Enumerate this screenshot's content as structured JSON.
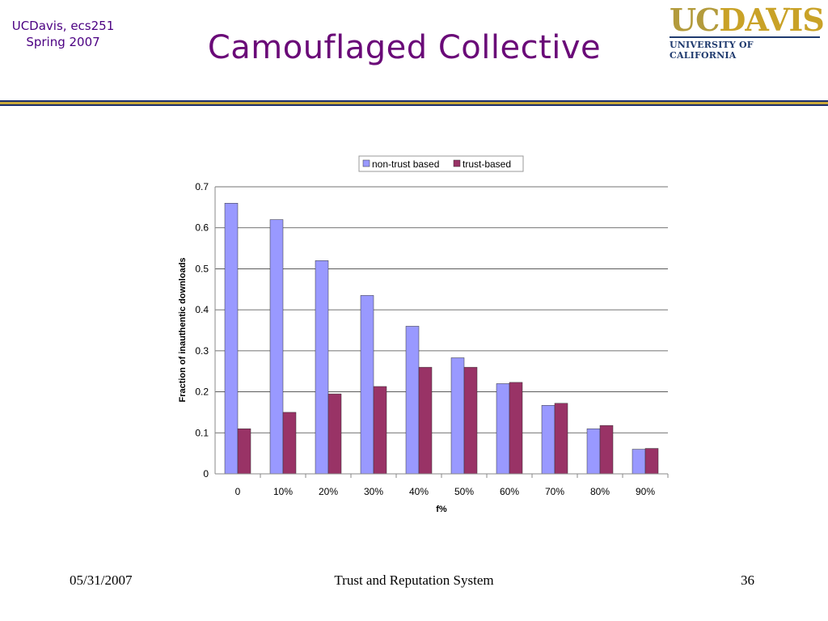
{
  "header": {
    "course_line1": "UCDavis, ecs251",
    "course_line2": "Spring 2007",
    "title": "Camouflaged Collective",
    "logo": {
      "uc": "UC",
      "davis": "DAVIS",
      "sub": "UNIVERSITY OF CALIFORNIA"
    }
  },
  "footer": {
    "date": "05/31/2007",
    "center": "Trust and Reputation System",
    "page": "36"
  },
  "chart_data": {
    "type": "bar",
    "categories": [
      "0",
      "10%",
      "20%",
      "30%",
      "40%",
      "50%",
      "60%",
      "70%",
      "80%",
      "90%"
    ],
    "series": [
      {
        "name": "non-trust based",
        "color": "#9999ff",
        "values": [
          0.66,
          0.62,
          0.52,
          0.435,
          0.36,
          0.283,
          0.22,
          0.167,
          0.11,
          0.06
        ]
      },
      {
        "name": "trust-based",
        "color": "#993366",
        "values": [
          0.11,
          0.15,
          0.195,
          0.213,
          0.26,
          0.26,
          0.223,
          0.172,
          0.118,
          0.062
        ]
      }
    ],
    "xlabel": "f%",
    "ylabel": "Fraction of inauthentic downloads",
    "ylim": [
      0,
      0.7
    ],
    "yticks": [
      "0",
      "0.1",
      "0.2",
      "0.3",
      "0.4",
      "0.5",
      "0.6",
      "0.7"
    ],
    "grid": true,
    "legend": "top-center"
  }
}
